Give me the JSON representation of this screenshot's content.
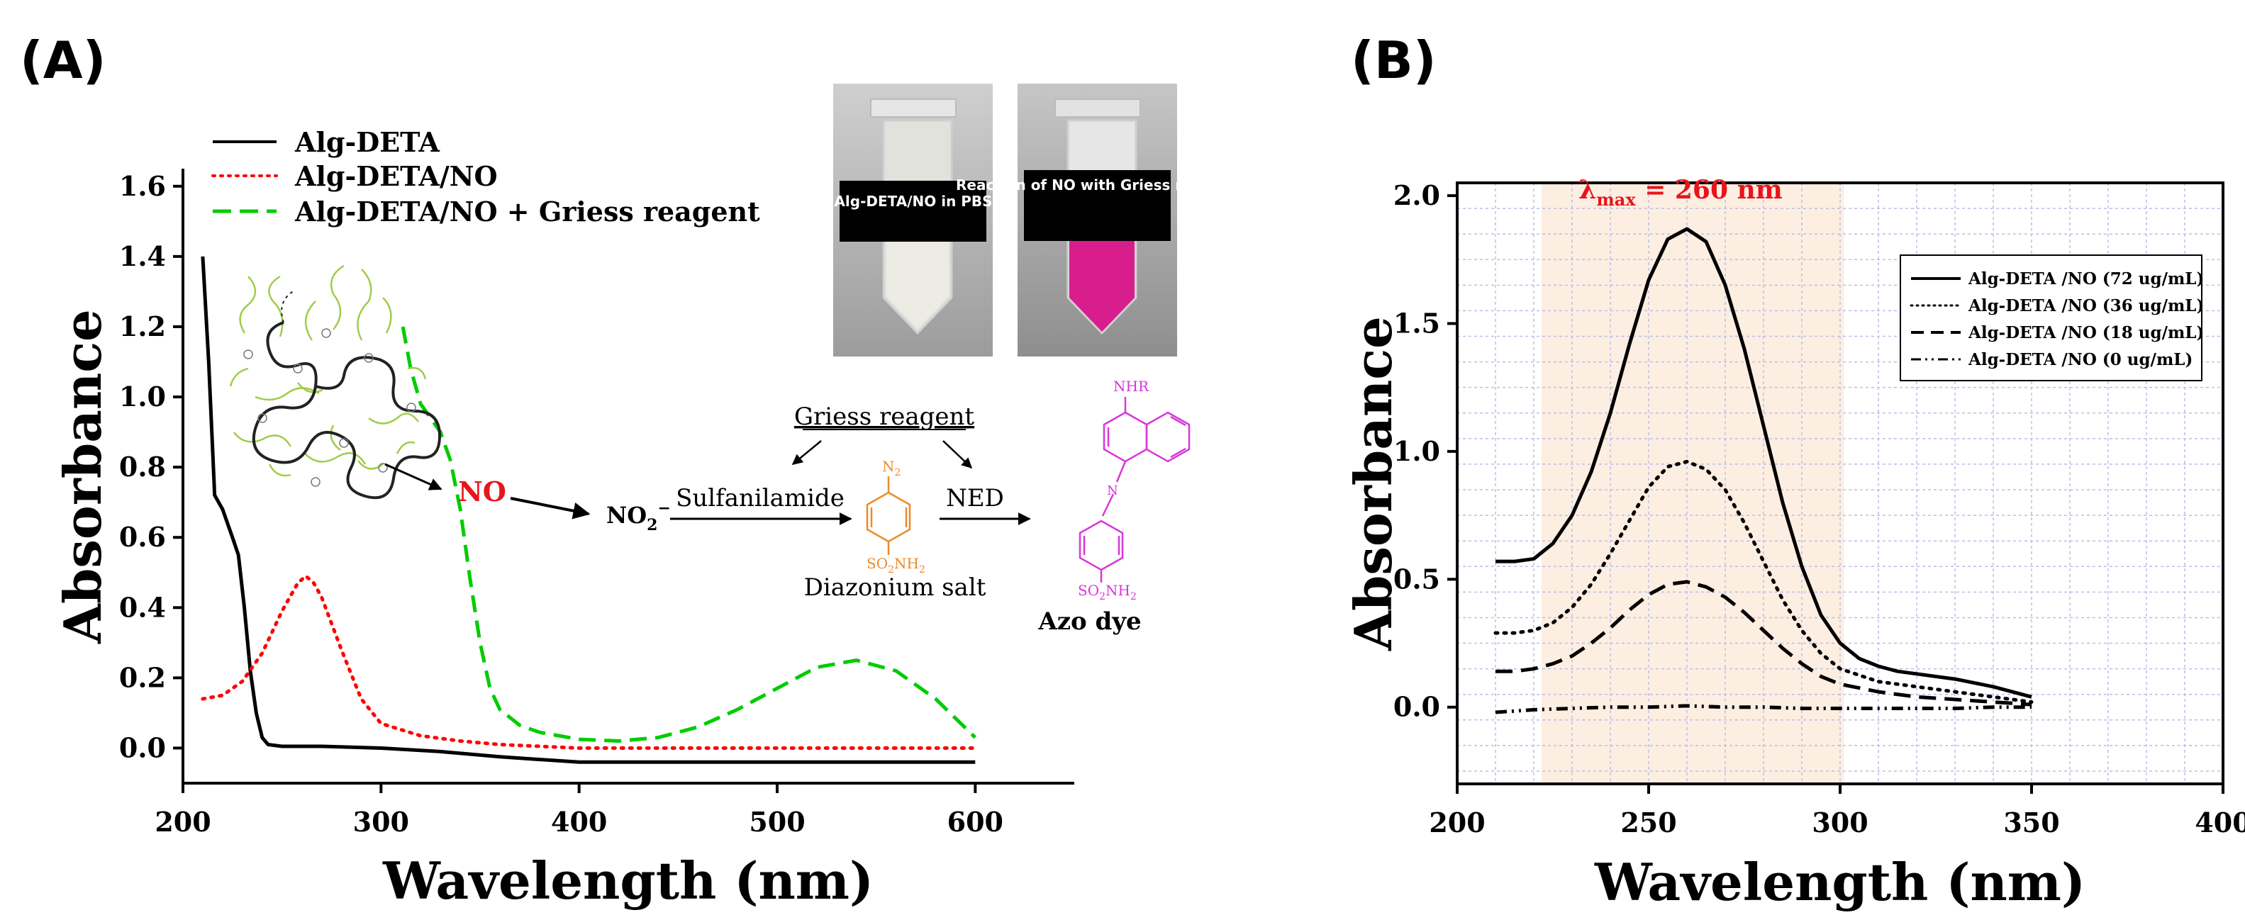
{
  "panel_labels": [
    "(A)",
    "(B)"
  ],
  "chart_data": [
    {
      "type": "line",
      "xlabel": "Wavelength (nm)",
      "ylabel": "Absorbance",
      "xlim": [
        200,
        650
      ],
      "ylim": [
        -0.1,
        1.65
      ],
      "xticks": [
        200,
        300,
        400,
        500,
        600
      ],
      "yticks": [
        0.0,
        0.2,
        0.4,
        0.6,
        0.8,
        1.0,
        1.2,
        1.4,
        1.6
      ],
      "tick_decimals": 1,
      "grid": false,
      "legend_position": "top-left",
      "series": [
        {
          "name": "Alg-DETA",
          "color": "#000000",
          "style": "solid",
          "x": [
            210,
            213,
            216,
            220,
            225,
            228,
            231,
            234,
            237,
            240,
            243,
            250,
            270,
            300,
            330,
            360,
            400,
            450,
            500,
            550,
            600
          ],
          "y": [
            1.4,
            1.1,
            0.72,
            0.68,
            0.6,
            0.55,
            0.4,
            0.22,
            0.1,
            0.03,
            0.01,
            0.005,
            0.005,
            0.0,
            -0.01,
            -0.025,
            -0.04,
            -0.04,
            -0.04,
            -0.04,
            -0.04
          ]
        },
        {
          "name": "Alg-DETA/NO",
          "color": "#ff0000",
          "style": "dotted",
          "x": [
            210,
            220,
            230,
            240,
            250,
            258,
            262,
            266,
            270,
            280,
            290,
            300,
            320,
            340,
            360,
            400,
            450,
            500,
            550,
            600
          ],
          "y": [
            0.14,
            0.15,
            0.19,
            0.27,
            0.39,
            0.47,
            0.49,
            0.47,
            0.43,
            0.28,
            0.14,
            0.07,
            0.035,
            0.02,
            0.01,
            0.0,
            0.0,
            0.0,
            0.0,
            0.0
          ]
        },
        {
          "name": "Alg-DETA/NO + Griess reagent",
          "color": "#00cc00",
          "style": "dashed",
          "x": [
            311,
            315,
            320,
            325,
            330,
            335,
            340,
            345,
            350,
            355,
            360,
            370,
            380,
            400,
            420,
            440,
            460,
            480,
            500,
            520,
            540,
            560,
            580,
            600
          ],
          "y": [
            1.2,
            1.08,
            0.98,
            0.94,
            0.9,
            0.82,
            0.68,
            0.48,
            0.3,
            0.17,
            0.11,
            0.065,
            0.045,
            0.025,
            0.02,
            0.03,
            0.06,
            0.11,
            0.17,
            0.23,
            0.25,
            0.22,
            0.14,
            0.03
          ]
        }
      ]
    },
    {
      "type": "line",
      "xlabel": "Wavelength (nm)",
      "ylabel": "Absorbance",
      "xlim": [
        200,
        400
      ],
      "ylim": [
        -0.3,
        2.05
      ],
      "xticks": [
        200,
        250,
        300,
        350,
        400
      ],
      "yticks": [
        0.0,
        0.5,
        1.0,
        1.5,
        2.0
      ],
      "tick_decimals": 1,
      "grid": true,
      "legend_position": "top-right",
      "highlight": {
        "x_from": 222,
        "x_to": 301,
        "color": "#fdeee2"
      },
      "annotation": {
        "prefix": "λ",
        "sub": "max",
        "suffix": " = 260 nm",
        "x": 260,
        "y": 1.95,
        "color": "#e8141b"
      },
      "series": [
        {
          "name": "Alg-DETA /NO (72 ug/mL)",
          "color": "#000000",
          "style": "solid",
          "x": [
            210,
            215,
            220,
            225,
            230,
            235,
            240,
            245,
            250,
            255,
            260,
            265,
            270,
            275,
            280,
            285,
            290,
            295,
            300,
            305,
            310,
            315,
            320,
            330,
            340,
            350
          ],
          "y": [
            0.57,
            0.57,
            0.58,
            0.64,
            0.75,
            0.92,
            1.15,
            1.42,
            1.67,
            1.83,
            1.87,
            1.82,
            1.65,
            1.4,
            1.1,
            0.8,
            0.55,
            0.36,
            0.25,
            0.19,
            0.16,
            0.14,
            0.13,
            0.11,
            0.08,
            0.04
          ]
        },
        {
          "name": "Alg-DETA /NO (36 ug/mL)",
          "color": "#000000",
          "style": "dotted",
          "x": [
            210,
            215,
            220,
            225,
            230,
            235,
            240,
            245,
            250,
            255,
            260,
            265,
            270,
            275,
            280,
            285,
            290,
            295,
            300,
            310,
            320,
            330,
            340,
            350
          ],
          "y": [
            0.29,
            0.29,
            0.3,
            0.33,
            0.39,
            0.48,
            0.6,
            0.73,
            0.86,
            0.94,
            0.96,
            0.93,
            0.85,
            0.72,
            0.57,
            0.42,
            0.3,
            0.21,
            0.15,
            0.1,
            0.08,
            0.06,
            0.04,
            0.02
          ]
        },
        {
          "name": "Alg-DETA /NO (18 ug/mL)",
          "color": "#000000",
          "style": "dashed",
          "x": [
            210,
            215,
            220,
            225,
            230,
            235,
            240,
            245,
            250,
            255,
            260,
            265,
            270,
            275,
            280,
            285,
            290,
            295,
            300,
            310,
            320,
            330,
            340,
            350
          ],
          "y": [
            0.14,
            0.14,
            0.15,
            0.17,
            0.2,
            0.25,
            0.31,
            0.38,
            0.44,
            0.48,
            0.49,
            0.47,
            0.43,
            0.37,
            0.3,
            0.23,
            0.17,
            0.12,
            0.09,
            0.06,
            0.04,
            0.03,
            0.02,
            0.01
          ]
        },
        {
          "name": "Alg-DETA /NO (0 ug/mL)",
          "color": "#000000",
          "style": "dashdot",
          "x": [
            210,
            220,
            230,
            240,
            250,
            260,
            270,
            280,
            290,
            300,
            310,
            320,
            330,
            340,
            350
          ],
          "y": [
            -0.02,
            -0.01,
            -0.005,
            0.0,
            0.0,
            0.005,
            0.0,
            0.0,
            -0.005,
            -0.005,
            -0.005,
            -0.005,
            -0.005,
            0.0,
            0.0
          ]
        }
      ]
    }
  ],
  "photo_inset": {
    "tubes": [
      {
        "caption": "Alg-DETA/NO in PBS",
        "liquid_color": "#ecece4"
      },
      {
        "caption": "Reaction of NO with Griess reagent",
        "liquid_color": "#d81e8c"
      }
    ]
  },
  "reaction_scheme": {
    "no_label": "NO",
    "nitrite": "NO",
    "nitrite_sub": "2",
    "nitrite_sup": "−",
    "griess_label": "Griess reagent",
    "step1_label": "Sulfanilamide",
    "step2_label": "NED",
    "diazonium_label": "Diazonium salt",
    "azo_label": "Azo dye",
    "diazonium_top": "N",
    "diazonium_top_sub": "2",
    "diazonium_bottom": "SO",
    "diazonium_bottom_tail": "NH",
    "azo_top": "NHR",
    "azo_bottom": "SO",
    "azo_bottom_tail": "NH",
    "sub2": "2",
    "azo_link": "N",
    "orange": "#ec8a2a",
    "magenta": "#d936d9",
    "red": "#e8141b"
  }
}
